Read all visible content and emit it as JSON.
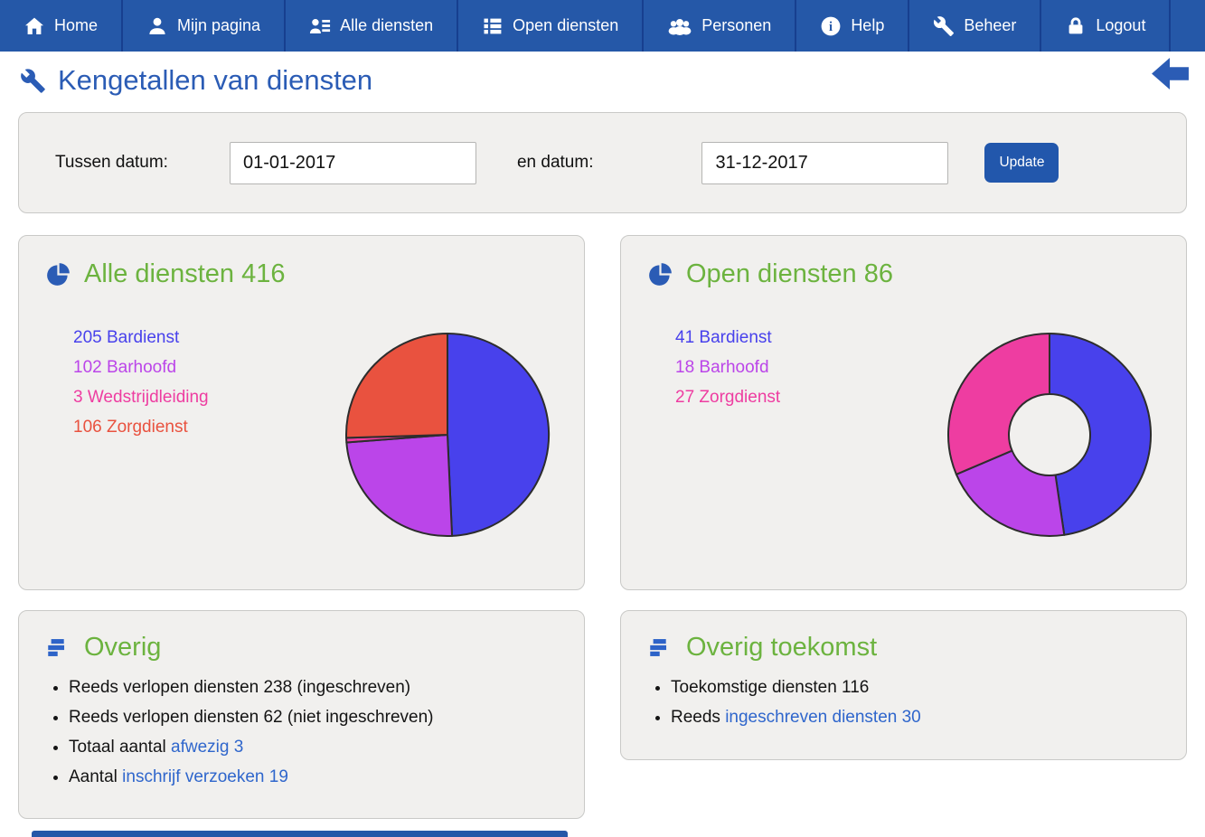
{
  "nav": {
    "items": [
      {
        "id": "home",
        "label": "Home",
        "icon": "home-icon"
      },
      {
        "id": "mijn-pagina",
        "label": "Mijn pagina",
        "icon": "person-icon"
      },
      {
        "id": "alle-diensten",
        "label": "Alle diensten",
        "icon": "person-list-icon"
      },
      {
        "id": "open-diensten",
        "label": "Open diensten",
        "icon": "list-icon"
      },
      {
        "id": "personen",
        "label": "Personen",
        "icon": "people-icon"
      },
      {
        "id": "help",
        "label": "Help",
        "icon": "info-icon"
      },
      {
        "id": "beheer",
        "label": "Beheer",
        "icon": "wrench-icon"
      },
      {
        "id": "logout",
        "label": "Logout",
        "icon": "lock-icon"
      }
    ]
  },
  "page": {
    "title": "Kengetallen van diensten",
    "title_icon": "wrench-icon",
    "back_icon": "back-arrow-icon"
  },
  "filter": {
    "from_label": "Tussen datum:",
    "from_value": "01-01-2017",
    "to_label": "en datum:",
    "to_value": "31-12-2017",
    "update_label": "Update"
  },
  "chart_data": [
    {
      "type": "pie",
      "title": "Alle diensten",
      "total": 416,
      "header_icon": "pie-chart-icon",
      "legend_position": "left",
      "start_angle_deg": 0,
      "direction": "clockwise",
      "outline_color": "#2d2d2d",
      "series": [
        {
          "name": "Bardienst",
          "value": 205,
          "color": "#4841ec"
        },
        {
          "name": "Barhoofd",
          "value": 102,
          "color": "#bb45e9"
        },
        {
          "name": "Wedstrijdleiding",
          "value": 3,
          "color": "#ee3da1"
        },
        {
          "name": "Zorgdienst",
          "value": 106,
          "color": "#e9523f"
        }
      ]
    },
    {
      "type": "donut",
      "title": "Open diensten",
      "total": 86,
      "header_icon": "pie-chart-icon",
      "legend_position": "left",
      "start_angle_deg": 0,
      "direction": "clockwise",
      "inner_radius_ratio": 0.4,
      "outline_color": "#2d2d2d",
      "series": [
        {
          "name": "Bardienst",
          "value": 41,
          "color": "#4841ec"
        },
        {
          "name": "Barhoofd",
          "value": 18,
          "color": "#bb45e9"
        },
        {
          "name": "Zorgdienst",
          "value": 27,
          "color": "#ee3da1"
        }
      ]
    }
  ],
  "panels": {
    "overig": {
      "title": "Overig",
      "icon": "bars-icon",
      "items": [
        {
          "segments": [
            {
              "text": "Reeds verlopen diensten 238 (ingeschreven)",
              "link": false
            }
          ]
        },
        {
          "segments": [
            {
              "text": "Reeds verlopen diensten 62 (niet ingeschreven)",
              "link": false
            }
          ]
        },
        {
          "segments": [
            {
              "text": "Totaal aantal ",
              "link": false
            },
            {
              "text": "afwezig 3",
              "link": true
            }
          ]
        },
        {
          "segments": [
            {
              "text": "Aantal ",
              "link": false
            },
            {
              "text": "inschrijf verzoeken 19",
              "link": true
            }
          ]
        }
      ]
    },
    "overig_toekomst": {
      "title": "Overig toekomst",
      "icon": "bars-icon",
      "items": [
        {
          "segments": [
            {
              "text": "Toekomstige diensten 116",
              "link": false
            }
          ]
        },
        {
          "segments": [
            {
              "text": "Reeds ",
              "link": false
            },
            {
              "text": "ingeschreven diensten 30",
              "link": true
            }
          ]
        }
      ]
    }
  },
  "colors": {
    "nav_bg": "#2558a8",
    "nav_divider": "#173f8f",
    "title_blue": "#2b5cb5",
    "header_green": "#6cb33f",
    "link_blue": "#2f66cc",
    "panel_bg": "#f1f0ee",
    "panel_border": "#c9c9c7",
    "update_button_bg": "#2257ac"
  }
}
